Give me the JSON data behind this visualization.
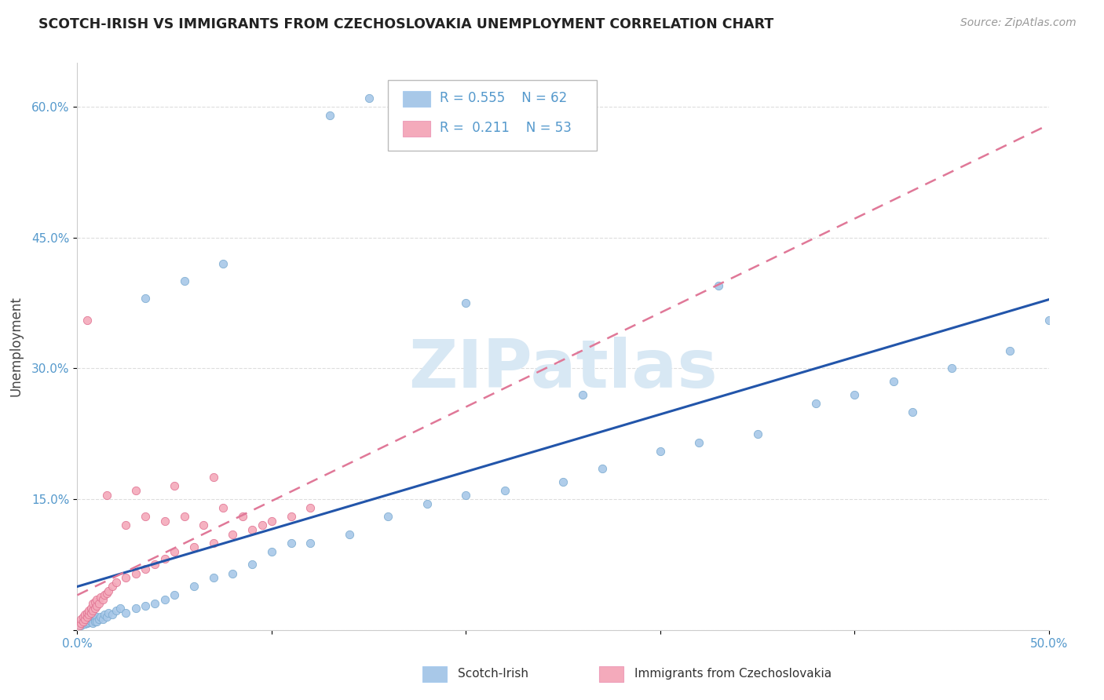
{
  "title": "SCOTCH-IRISH VS IMMIGRANTS FROM CZECHOSLOVAKIA UNEMPLOYMENT CORRELATION CHART",
  "source": "Source: ZipAtlas.com",
  "ylabel_text": "Unemployment",
  "y_ticks": [
    0.0,
    0.15,
    0.3,
    0.45,
    0.6
  ],
  "y_tick_labels": [
    "",
    "15.0%",
    "30.0%",
    "45.0%",
    "60.0%"
  ],
  "x_ticks": [
    0.0,
    0.1,
    0.2,
    0.3,
    0.4,
    0.5
  ],
  "x_tick_labels": [
    "0.0%",
    "",
    "",
    "",
    "",
    "50.0%"
  ],
  "xlim": [
    0.0,
    0.5
  ],
  "ylim": [
    0.0,
    0.65
  ],
  "blue_color": "#A8C8E8",
  "blue_edge_color": "#7AAAD0",
  "pink_color": "#F4AABB",
  "pink_edge_color": "#E07090",
  "blue_line_color": "#2255AA",
  "pink_line_color": "#E07898",
  "grid_color": "#DDDDDD",
  "tick_color": "#5599CC",
  "watermark": "ZIPatlas",
  "watermark_color": "#D8E8F4",
  "legend_r1": "R = 0.555",
  "legend_n1": "N = 62",
  "legend_r2": "R =  0.211",
  "legend_n2": "N = 53",
  "si_x": [
    0.002,
    0.003,
    0.004,
    0.005,
    0.005,
    0.006,
    0.006,
    0.007,
    0.007,
    0.008,
    0.008,
    0.009,
    0.009,
    0.01,
    0.01,
    0.011,
    0.012,
    0.013,
    0.014,
    0.015,
    0.016,
    0.018,
    0.02,
    0.022,
    0.025,
    0.03,
    0.035,
    0.04,
    0.045,
    0.05,
    0.06,
    0.07,
    0.08,
    0.09,
    0.1,
    0.11,
    0.12,
    0.14,
    0.16,
    0.18,
    0.2,
    0.22,
    0.25,
    0.27,
    0.3,
    0.32,
    0.35,
    0.38,
    0.4,
    0.42,
    0.45,
    0.48,
    0.5,
    0.2,
    0.26,
    0.33,
    0.43,
    0.035,
    0.055,
    0.075,
    0.13,
    0.15
  ],
  "si_y": [
    0.005,
    0.008,
    0.007,
    0.01,
    0.008,
    0.012,
    0.009,
    0.01,
    0.013,
    0.015,
    0.008,
    0.012,
    0.01,
    0.015,
    0.01,
    0.012,
    0.015,
    0.012,
    0.018,
    0.015,
    0.02,
    0.018,
    0.022,
    0.025,
    0.02,
    0.025,
    0.028,
    0.03,
    0.035,
    0.04,
    0.05,
    0.06,
    0.065,
    0.075,
    0.09,
    0.1,
    0.1,
    0.11,
    0.13,
    0.145,
    0.155,
    0.16,
    0.17,
    0.185,
    0.205,
    0.215,
    0.225,
    0.26,
    0.27,
    0.285,
    0.3,
    0.32,
    0.355,
    0.375,
    0.27,
    0.395,
    0.25,
    0.38,
    0.4,
    0.42,
    0.59,
    0.61
  ],
  "cz_x": [
    0.001,
    0.002,
    0.002,
    0.003,
    0.003,
    0.004,
    0.004,
    0.005,
    0.005,
    0.006,
    0.006,
    0.007,
    0.007,
    0.008,
    0.008,
    0.009,
    0.009,
    0.01,
    0.01,
    0.011,
    0.012,
    0.013,
    0.014,
    0.015,
    0.016,
    0.018,
    0.02,
    0.025,
    0.03,
    0.035,
    0.04,
    0.045,
    0.05,
    0.06,
    0.07,
    0.08,
    0.09,
    0.1,
    0.11,
    0.12,
    0.025,
    0.035,
    0.045,
    0.055,
    0.065,
    0.075,
    0.085,
    0.095,
    0.015,
    0.03,
    0.05,
    0.07,
    0.005
  ],
  "cz_y": [
    0.005,
    0.008,
    0.012,
    0.01,
    0.015,
    0.012,
    0.018,
    0.015,
    0.02,
    0.018,
    0.022,
    0.02,
    0.025,
    0.022,
    0.03,
    0.025,
    0.032,
    0.028,
    0.035,
    0.03,
    0.038,
    0.035,
    0.04,
    0.042,
    0.045,
    0.05,
    0.055,
    0.06,
    0.065,
    0.07,
    0.075,
    0.082,
    0.09,
    0.095,
    0.1,
    0.11,
    0.115,
    0.125,
    0.13,
    0.14,
    0.12,
    0.13,
    0.125,
    0.13,
    0.12,
    0.14,
    0.13,
    0.12,
    0.155,
    0.16,
    0.165,
    0.175,
    0.355
  ]
}
